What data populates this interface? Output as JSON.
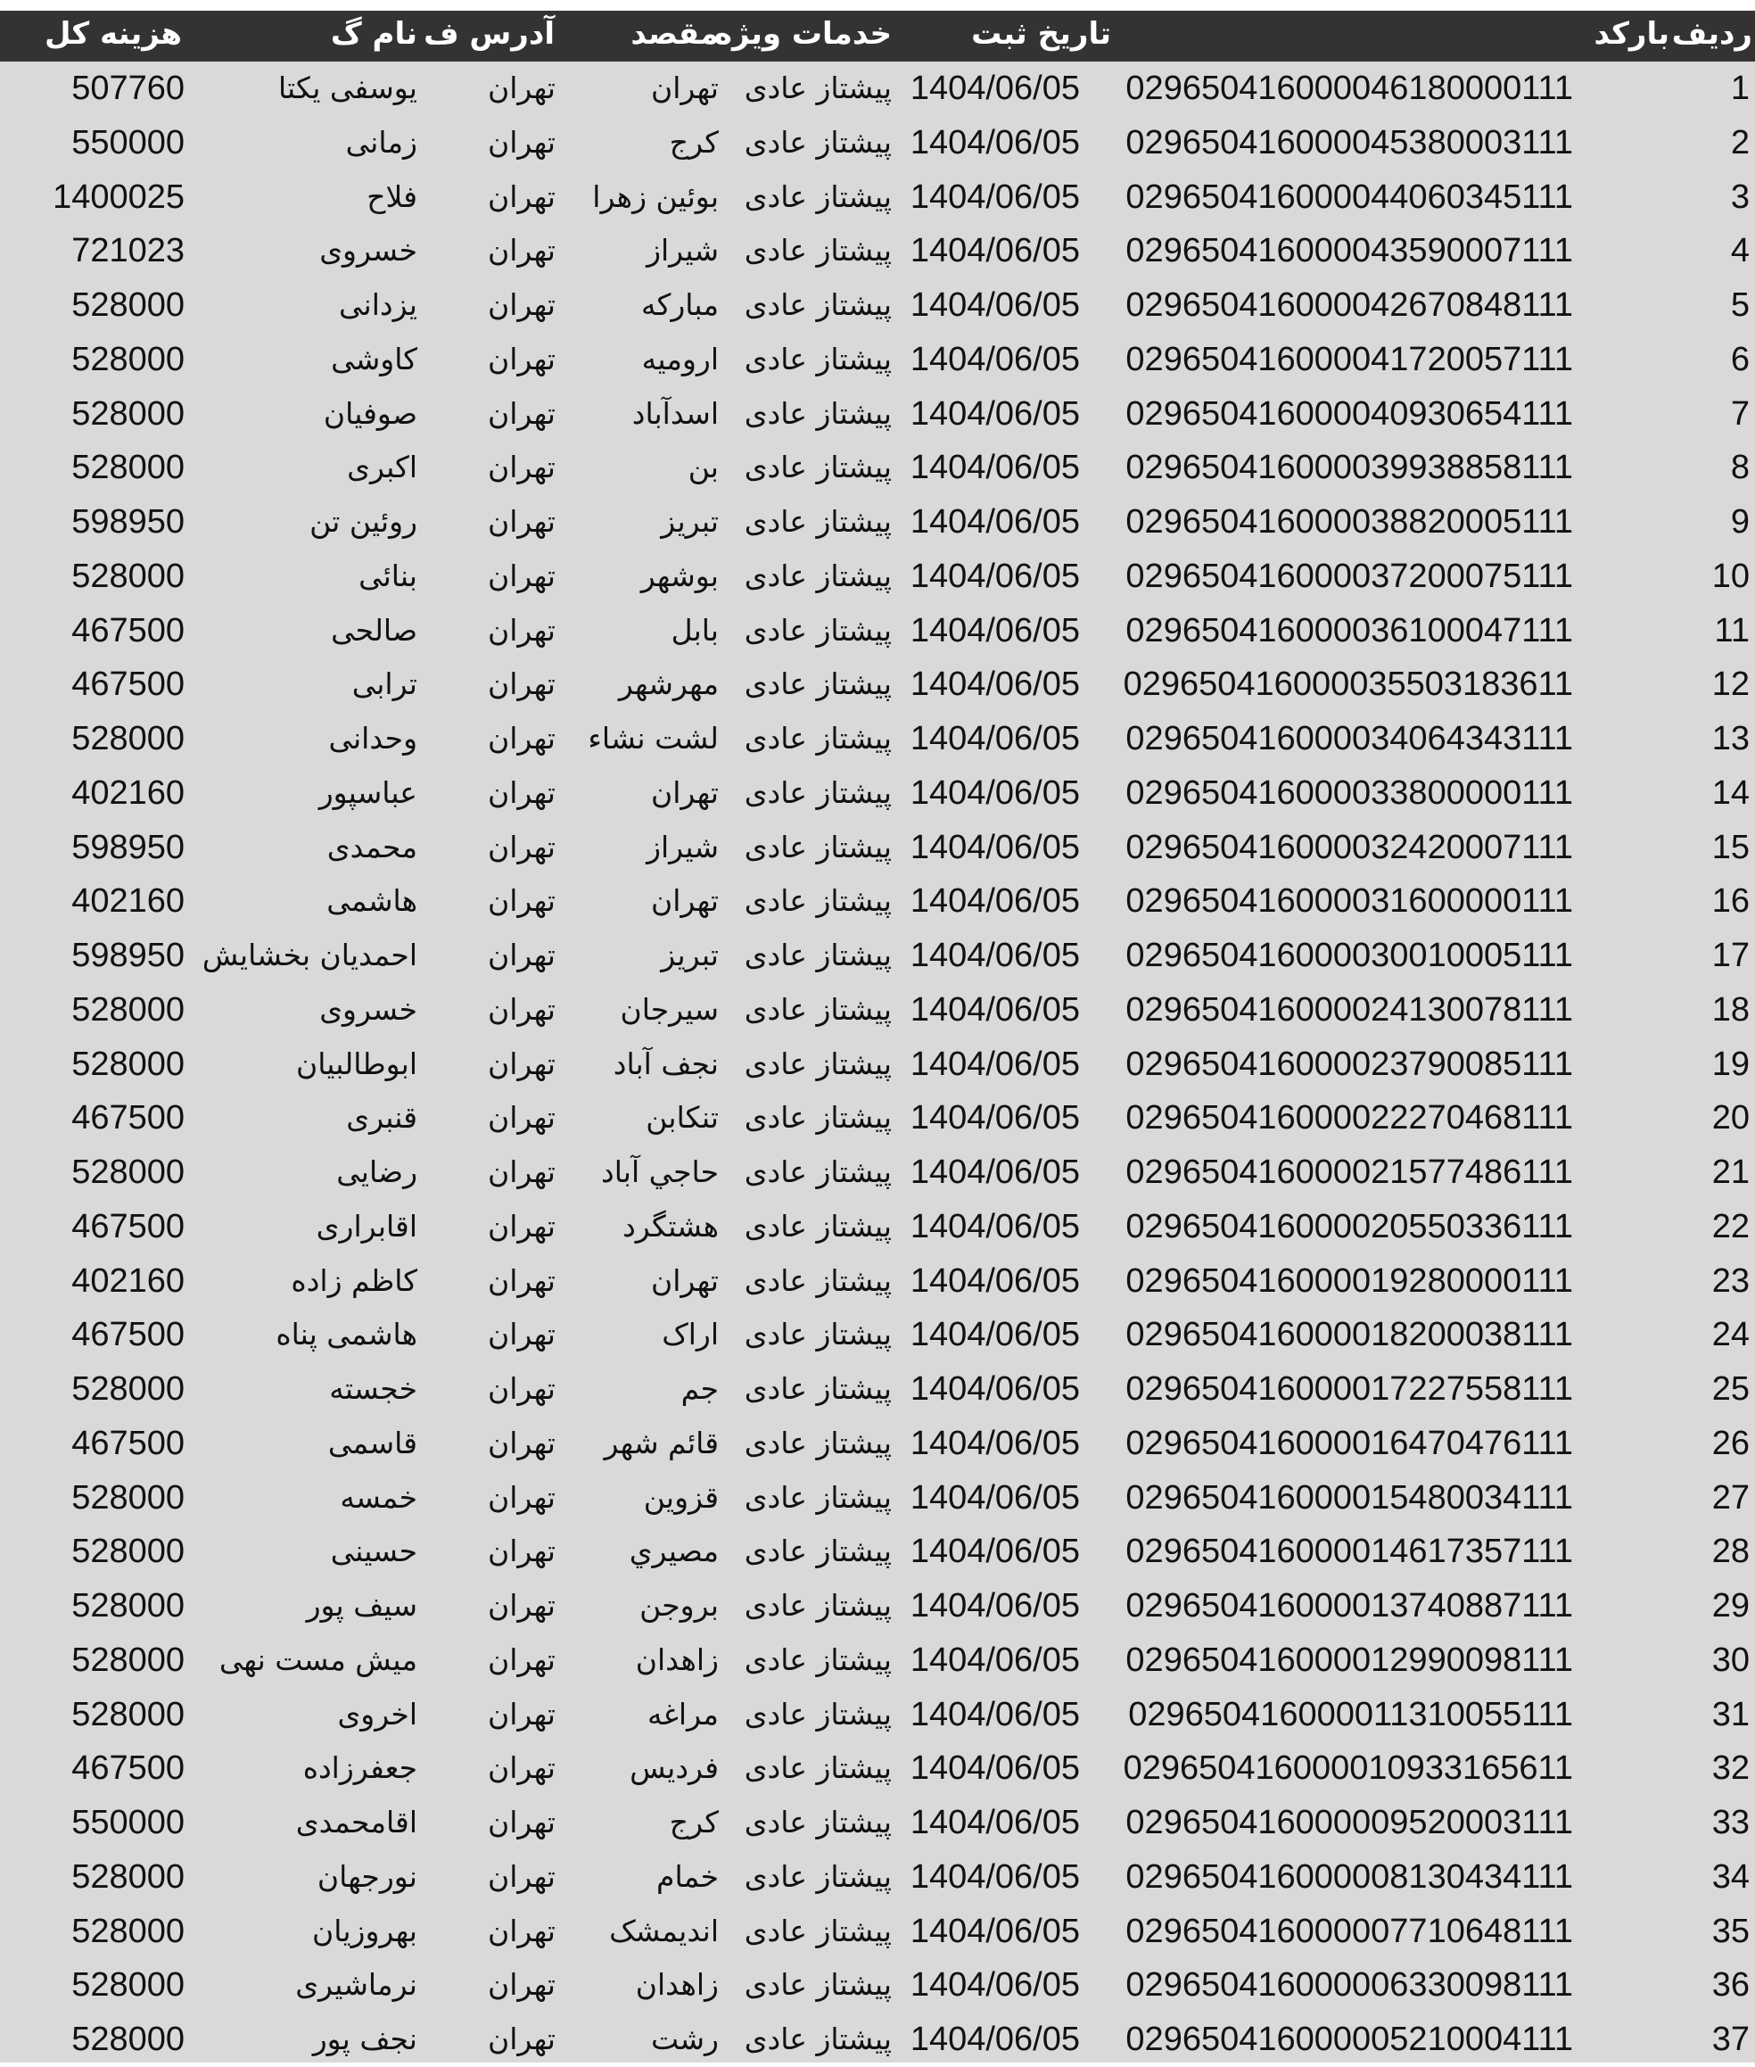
{
  "header": {
    "row_no": "ردیف",
    "barcode": "بارکد",
    "date": "تاریخ ثبت",
    "service": "خدمات ویژه",
    "destination": "مقصد",
    "address": "آدرس ف",
    "name": "نام گ",
    "total_cost": "هزینه کل"
  },
  "rows": [
    [
      "1",
      "029650416000046180000111",
      "1404/06/05",
      "پیشتاز عادی",
      "تهران",
      "تهران",
      "یوسفی یکتا",
      "507760"
    ],
    [
      "2",
      "029650416000045380003111",
      "1404/06/05",
      "پیشتاز عادی",
      "کرج",
      "تهران",
      "زمانی",
      "550000"
    ],
    [
      "3",
      "029650416000044060345111",
      "1404/06/05",
      "پیشتاز عادی",
      "بوئین زهرا",
      "تهران",
      "فلاح",
      "1400025"
    ],
    [
      "4",
      "029650416000043590007111",
      "1404/06/05",
      "پیشتاز عادی",
      "شیراز",
      "تهران",
      "خسروی",
      "721023"
    ],
    [
      "5",
      "029650416000042670848111",
      "1404/06/05",
      "پیشتاز عادی",
      "مبارکه",
      "تهران",
      "یزدانی",
      "528000"
    ],
    [
      "6",
      "029650416000041720057111",
      "1404/06/05",
      "پیشتاز عادی",
      "ارومیه",
      "تهران",
      "کاوشی",
      "528000"
    ],
    [
      "7",
      "029650416000040930654111",
      "1404/06/05",
      "پیشتاز عادی",
      "اسدآباد",
      "تهران",
      "صوفیان",
      "528000"
    ],
    [
      "8",
      "029650416000039938858111",
      "1404/06/05",
      "پیشتاز عادی",
      "بن",
      "تهران",
      "اکبری",
      "528000"
    ],
    [
      "9",
      "029650416000038820005111",
      "1404/06/05",
      "پیشتاز عادی",
      "تبریز",
      "تهران",
      "روئین تن",
      "598950"
    ],
    [
      "10",
      "029650416000037200075111",
      "1404/06/05",
      "پیشتاز عادی",
      "بوشهر",
      "تهران",
      "بنائی",
      "528000"
    ],
    [
      "11",
      "029650416000036100047111",
      "1404/06/05",
      "پیشتاز عادی",
      "بابل",
      "تهران",
      "صالحی",
      "467500"
    ],
    [
      "12",
      "029650416000035503183611",
      "1404/06/05",
      "پیشتاز عادی",
      "مهرشهر",
      "تهران",
      "ترابی",
      "467500"
    ],
    [
      "13",
      "029650416000034064343111",
      "1404/06/05",
      "پیشتاز عادی",
      "لشت نشاء",
      "تهران",
      "وحدانی",
      "528000"
    ],
    [
      "14",
      "029650416000033800000111",
      "1404/06/05",
      "پیشتاز عادی",
      "تهران",
      "تهران",
      "عباسپور",
      "402160"
    ],
    [
      "15",
      "029650416000032420007111",
      "1404/06/05",
      "پیشتاز عادی",
      "شیراز",
      "تهران",
      "محمدی",
      "598950"
    ],
    [
      "16",
      "029650416000031600000111",
      "1404/06/05",
      "پیشتاز عادی",
      "تهران",
      "تهران",
      "هاشمی",
      "402160"
    ],
    [
      "17",
      "029650416000030010005111",
      "1404/06/05",
      "پیشتاز عادی",
      "تبریز",
      "تهران",
      "احمدیان بخشایش",
      "598950"
    ],
    [
      "18",
      "029650416000024130078111",
      "1404/06/05",
      "پیشتاز عادی",
      "سیرجان",
      "تهران",
      "خسروی",
      "528000"
    ],
    [
      "19",
      "029650416000023790085111",
      "1404/06/05",
      "پیشتاز عادی",
      "نجف آباد",
      "تهران",
      "ابوطالبیان",
      "528000"
    ],
    [
      "20",
      "029650416000022270468111",
      "1404/06/05",
      "پیشتاز عادی",
      "تنکابن",
      "تهران",
      "قنبری",
      "467500"
    ],
    [
      "21",
      "029650416000021577486111",
      "1404/06/05",
      "پیشتاز عادی",
      "حاجي آباد",
      "تهران",
      "رضایی",
      "528000"
    ],
    [
      "22",
      "029650416000020550336111",
      "1404/06/05",
      "پیشتاز عادی",
      "هشتگرد",
      "تهران",
      "اقابراری",
      "467500"
    ],
    [
      "23",
      "029650416000019280000111",
      "1404/06/05",
      "پیشتاز عادی",
      "تهران",
      "تهران",
      "کاظم زاده",
      "402160"
    ],
    [
      "24",
      "029650416000018200038111",
      "1404/06/05",
      "پیشتاز عادی",
      "اراک",
      "تهران",
      "هاشمی پناه",
      "467500"
    ],
    [
      "25",
      "029650416000017227558111",
      "1404/06/05",
      "پیشتاز عادی",
      "جم",
      "تهران",
      "خجسته",
      "528000"
    ],
    [
      "26",
      "029650416000016470476111",
      "1404/06/05",
      "پیشتاز عادی",
      "قائم شهر",
      "تهران",
      "قاسمی",
      "467500"
    ],
    [
      "27",
      "029650416000015480034111",
      "1404/06/05",
      "پیشتاز عادی",
      "قزوین",
      "تهران",
      "خمسه",
      "528000"
    ],
    [
      "28",
      "029650416000014617357111",
      "1404/06/05",
      "پیشتاز عادی",
      "مصيري",
      "تهران",
      "حسینی",
      "528000"
    ],
    [
      "29",
      "029650416000013740887111",
      "1404/06/05",
      "پیشتاز عادی",
      "بروجن",
      "تهران",
      "سیف پور",
      "528000"
    ],
    [
      "30",
      "029650416000012990098111",
      "1404/06/05",
      "پیشتاز عادی",
      "زاهدان",
      "تهران",
      "میش مست نهی",
      "528000"
    ],
    [
      "31",
      "029650416000011310055111",
      "1404/06/05",
      "پیشتاز عادی",
      "مراغه",
      "تهران",
      "اخروی",
      "528000"
    ],
    [
      "32",
      "029650416000010933165611",
      "1404/06/05",
      "پیشتاز عادی",
      "فردیس",
      "تهران",
      "جعفرزاده",
      "467500"
    ],
    [
      "33",
      "029650416000009520003111",
      "1404/06/05",
      "پیشتاز عادی",
      "کرج",
      "تهران",
      "اقامحمدی",
      "550000"
    ],
    [
      "34",
      "029650416000008130434111",
      "1404/06/05",
      "پیشتاز عادی",
      "خمام",
      "تهران",
      "نورجهان",
      "528000"
    ],
    [
      "35",
      "029650416000007710648111",
      "1404/06/05",
      "پیشتاز عادی",
      "اندیمشک",
      "تهران",
      "بهروزیان",
      "528000"
    ],
    [
      "36",
      "029650416000006330098111",
      "1404/06/05",
      "پیشتاز عادی",
      "زاهدان",
      "تهران",
      "نرماشیری",
      "528000"
    ],
    [
      "37",
      "029650416000005210004111",
      "1404/06/05",
      "پیشتاز عادی",
      "رشت",
      "تهران",
      "نجف پور",
      "528000"
    ]
  ]
}
